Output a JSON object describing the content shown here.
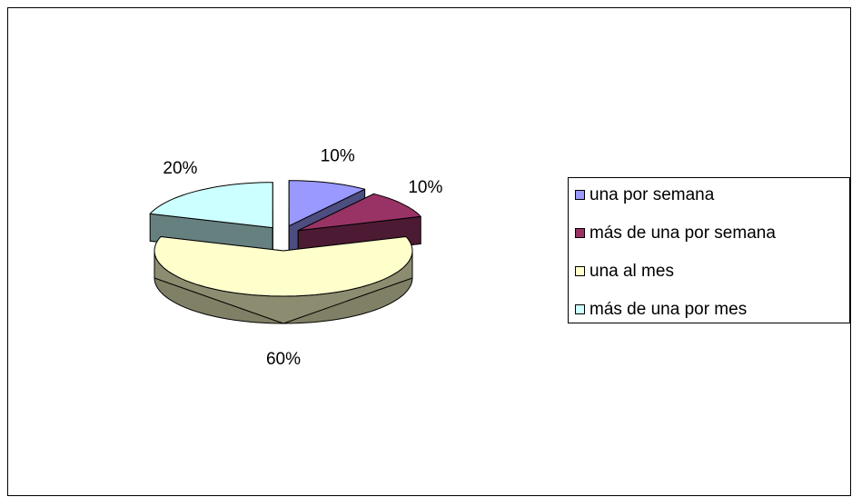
{
  "chart_data": {
    "type": "pie",
    "categories": [
      "una por semana",
      "más de una por semana",
      "una al mes",
      "más de una por mes"
    ],
    "values": [
      10,
      10,
      60,
      20
    ],
    "value_labels": [
      "10%",
      "10%",
      "60%",
      "20%"
    ],
    "colors": [
      "#9999ff",
      "#993366",
      "#ffffcc",
      "#ccffff"
    ],
    "legend": "right"
  }
}
